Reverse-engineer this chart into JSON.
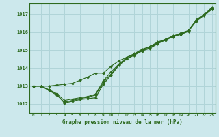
{
  "xlabel": "Graphe pression niveau de la mer (hPa)",
  "xlim": [
    -0.5,
    23.5
  ],
  "ylim": [
    1011.5,
    1017.6
  ],
  "yticks": [
    1012,
    1013,
    1014,
    1015,
    1016,
    1017
  ],
  "xticks": [
    0,
    1,
    2,
    3,
    4,
    5,
    6,
    7,
    8,
    9,
    10,
    11,
    12,
    13,
    14,
    15,
    16,
    17,
    18,
    19,
    20,
    21,
    22,
    23
  ],
  "bg_color": "#cce8ec",
  "line_color": "#2d6a1f",
  "grid_color": "#b0d4d8",
  "line1_x": [
    0,
    1,
    2,
    3,
    4,
    5,
    6,
    7,
    8,
    9,
    10,
    11,
    12,
    13,
    14,
    15,
    16,
    17,
    18,
    19,
    20,
    21,
    22,
    23
  ],
  "line1_y": [
    1013.0,
    1013.0,
    1012.78,
    1012.55,
    1012.05,
    1012.15,
    1012.25,
    1012.3,
    1012.35,
    1013.1,
    1013.6,
    1014.15,
    1014.5,
    1014.72,
    1014.95,
    1015.1,
    1015.35,
    1015.58,
    1015.78,
    1015.95,
    1016.1,
    1016.68,
    1016.98,
    1017.38
  ],
  "line2_x": [
    0,
    1,
    2,
    3,
    4,
    5,
    6,
    7,
    8,
    9,
    10,
    11,
    12,
    13,
    14,
    15,
    16,
    17,
    18,
    19,
    20,
    21,
    22,
    23
  ],
  "line2_y": [
    1013.0,
    1013.0,
    1012.75,
    1012.5,
    1012.1,
    1012.2,
    1012.3,
    1012.38,
    1012.5,
    1013.2,
    1013.65,
    1014.2,
    1014.52,
    1014.75,
    1014.98,
    1015.13,
    1015.38,
    1015.55,
    1015.75,
    1015.88,
    1016.05,
    1016.62,
    1016.92,
    1017.28
  ],
  "line3_x": [
    0,
    1,
    2,
    3,
    4,
    5,
    6,
    7,
    8,
    9,
    10,
    11,
    12,
    13,
    14,
    15,
    16,
    17,
    18,
    19,
    20,
    21,
    22,
    23
  ],
  "line3_y": [
    1013.0,
    1013.0,
    1013.0,
    1013.05,
    1013.1,
    1013.15,
    1013.32,
    1013.5,
    1013.72,
    1013.72,
    1014.1,
    1014.4,
    1014.6,
    1014.8,
    1015.05,
    1015.2,
    1015.45,
    1015.6,
    1015.8,
    1015.9,
    1016.1,
    1016.65,
    1016.95,
    1017.3
  ],
  "line4_x": [
    0,
    1,
    2,
    3,
    4,
    5,
    6,
    7,
    8,
    9,
    10,
    11,
    12,
    13,
    14,
    15,
    16,
    17,
    18,
    19,
    20,
    21,
    22,
    23
  ],
  "line4_y": [
    1013.0,
    1013.0,
    1012.8,
    1012.58,
    1012.2,
    1012.28,
    1012.35,
    1012.42,
    1012.55,
    1013.28,
    1013.78,
    1014.22,
    1014.58,
    1014.78,
    1015.02,
    1015.18,
    1015.42,
    1015.58,
    1015.78,
    1015.88,
    1016.08,
    1016.68,
    1016.98,
    1017.32
  ]
}
